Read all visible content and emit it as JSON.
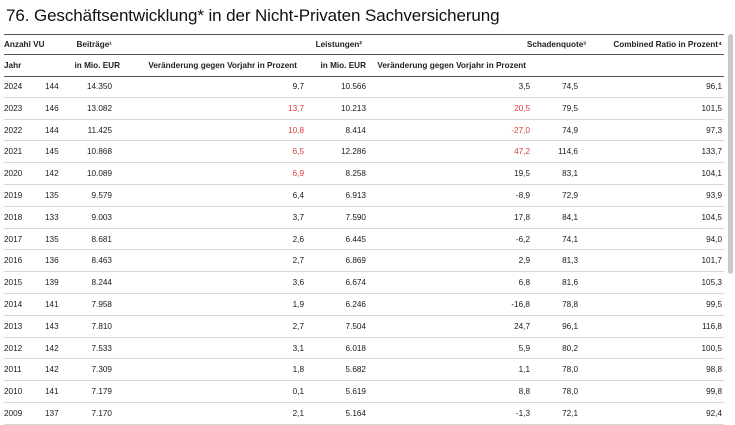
{
  "title": "76. Geschäftsentwicklung* in der Nicht-Privaten Sachversicherung",
  "header1": {
    "anzahl": "Anzahl VU",
    "beitraege": "Beiträge¹",
    "leistungen": "Leistungen²",
    "schadenquote": "Schadenquote³",
    "combined": "Combined Ratio in Prozent⁴"
  },
  "header2": {
    "jahr": "Jahr",
    "mio1": "in Mio. EUR",
    "veraend1": "Veränderung gegen Vorjahr in Prozent",
    "mio2": "in Mio. EUR",
    "veraend2": "Veränderung gegen Vorjahr in Prozent"
  },
  "colors": {
    "highlight": "#e03a3a"
  },
  "rows": [
    {
      "jahr": "2024",
      "vu": "144",
      "beitr": "14.350",
      "beitr_v": "9,7",
      "leist": "10.566",
      "leist_v": "3,5",
      "sq": "74,5",
      "cr": "96,1",
      "red1": false,
      "red2": false
    },
    {
      "jahr": "2023",
      "vu": "146",
      "beitr": "13.082",
      "beitr_v": "13,7",
      "leist": "10.213",
      "leist_v": "20,5",
      "sq": "79,5",
      "cr": "101,5",
      "red1": true,
      "red2": true
    },
    {
      "jahr": "2022",
      "vu": "144",
      "beitr": "11.425",
      "beitr_v": "10,8",
      "leist": "8.414",
      "leist_v": "-27,0",
      "sq": "74,9",
      "cr": "97,3",
      "red1": true,
      "red2": true
    },
    {
      "jahr": "2021",
      "vu": "145",
      "beitr": "10.868",
      "beitr_v": "6,5",
      "leist": "12.286",
      "leist_v": "47,2",
      "sq": "114,6",
      "cr": "133,7",
      "red1": true,
      "red2": true
    },
    {
      "jahr": "2020",
      "vu": "142",
      "beitr": "10.089",
      "beitr_v": "6,9",
      "leist": "8.258",
      "leist_v": "19,5",
      "sq": "83,1",
      "cr": "104,1",
      "red1": true,
      "red2": false
    },
    {
      "jahr": "2019",
      "vu": "135",
      "beitr": "9.579",
      "beitr_v": "6,4",
      "leist": "6.913",
      "leist_v": "-8,9",
      "sq": "72,9",
      "cr": "93,9",
      "red1": false,
      "red2": false
    },
    {
      "jahr": "2018",
      "vu": "133",
      "beitr": "9.003",
      "beitr_v": "3,7",
      "leist": "7.590",
      "leist_v": "17,8",
      "sq": "84,1",
      "cr": "104,5",
      "red1": false,
      "red2": false
    },
    {
      "jahr": "2017",
      "vu": "135",
      "beitr": "8.681",
      "beitr_v": "2,6",
      "leist": "6.445",
      "leist_v": "-6,2",
      "sq": "74,1",
      "cr": "94,0",
      "red1": false,
      "red2": false
    },
    {
      "jahr": "2016",
      "vu": "136",
      "beitr": "8.463",
      "beitr_v": "2,7",
      "leist": "6.869",
      "leist_v": "2,9",
      "sq": "81,3",
      "cr": "101,7",
      "red1": false,
      "red2": false
    },
    {
      "jahr": "2015",
      "vu": "139",
      "beitr": "8.244",
      "beitr_v": "3,6",
      "leist": "6.674",
      "leist_v": "6,8",
      "sq": "81,6",
      "cr": "105,3",
      "red1": false,
      "red2": false
    },
    {
      "jahr": "2014",
      "vu": "141",
      "beitr": "7.958",
      "beitr_v": "1,9",
      "leist": "6.246",
      "leist_v": "-16,8",
      "sq": "78,8",
      "cr": "99,5",
      "red1": false,
      "red2": false
    },
    {
      "jahr": "2013",
      "vu": "143",
      "beitr": "7.810",
      "beitr_v": "2,7",
      "leist": "7.504",
      "leist_v": "24,7",
      "sq": "96,1",
      "cr": "116,8",
      "red1": false,
      "red2": false
    },
    {
      "jahr": "2012",
      "vu": "142",
      "beitr": "7.533",
      "beitr_v": "3,1",
      "leist": "6.018",
      "leist_v": "5,9",
      "sq": "80,2",
      "cr": "100,5",
      "red1": false,
      "red2": false
    },
    {
      "jahr": "2011",
      "vu": "142",
      "beitr": "7.309",
      "beitr_v": "1,8",
      "leist": "5.682",
      "leist_v": "1,1",
      "sq": "78,0",
      "cr": "98,8",
      "red1": false,
      "red2": false
    },
    {
      "jahr": "2010",
      "vu": "141",
      "beitr": "7.179",
      "beitr_v": "0,1",
      "leist": "5.619",
      "leist_v": "8,8",
      "sq": "78,0",
      "cr": "99,8",
      "red1": false,
      "red2": false
    },
    {
      "jahr": "2009",
      "vu": "137",
      "beitr": "7.170",
      "beitr_v": "2,1",
      "leist": "5.164",
      "leist_v": "-1,3",
      "sq": "72,1",
      "cr": "92,4",
      "red1": false,
      "red2": false
    }
  ]
}
